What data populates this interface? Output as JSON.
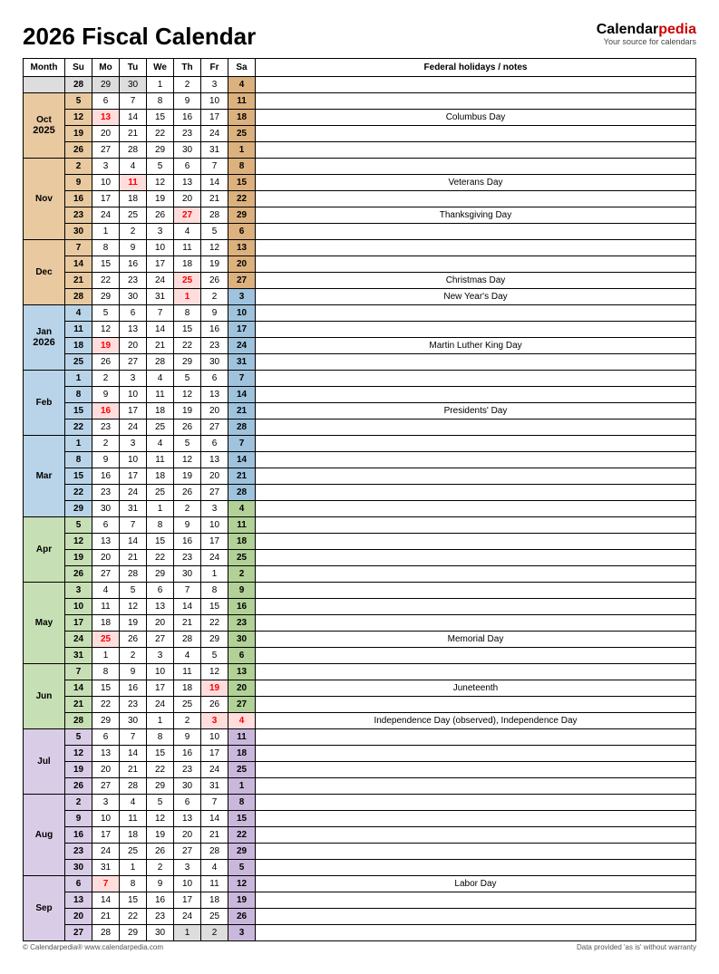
{
  "title": "2026 Fiscal Calendar",
  "brand": {
    "name_black": "Calendar",
    "name_red": "pedia",
    "tag": "Your source for calendars"
  },
  "headers": {
    "month": "Month",
    "days": [
      "Su",
      "Mo",
      "Tu",
      "We",
      "Th",
      "Fr",
      "Sa"
    ],
    "notes": "Federal holidays / notes"
  },
  "footer": {
    "left": "© Calendarpedia®   www.calendarpedia.com",
    "right": "Data provided 'as is' without warranty"
  },
  "colors": {
    "q1_su": "#e8c9a0",
    "q1_sa": "#dcb17e",
    "q1_m": "#e8c9a0",
    "q2_su": "#b9d4e8",
    "q2_sa": "#9fc2dd",
    "q2_m": "#b9d4e8",
    "q3_su": "#c7dfb4",
    "q3_sa": "#b1d197",
    "q3_m": "#c7dfb4",
    "q4_su": "#d9cce6",
    "q4_sa": "#c9b8dc",
    "q4_m": "#d9cce6",
    "prev": "#dddddd"
  },
  "months": [
    {
      "label": "Oct",
      "year": "2025",
      "q": 1,
      "pre": {
        "days": [
          "28",
          "29",
          "30",
          "1",
          "2",
          "3",
          "4"
        ],
        "prev": [
          0,
          1,
          2
        ],
        "sa_q": 1
      },
      "weeks": [
        {
          "days": [
            "5",
            "6",
            "7",
            "8",
            "9",
            "10",
            "11"
          ],
          "note": ""
        },
        {
          "days": [
            "12",
            "13",
            "14",
            "15",
            "16",
            "17",
            "18"
          ],
          "note": "Columbus Day",
          "holidays": [
            1
          ]
        },
        {
          "days": [
            "19",
            "20",
            "21",
            "22",
            "23",
            "24",
            "25"
          ],
          "note": ""
        },
        {
          "days": [
            "26",
            "27",
            "28",
            "29",
            "30",
            "31",
            "1"
          ],
          "note": "",
          "next_sa": true
        }
      ]
    },
    {
      "label": "Nov",
      "q": 1,
      "weeks": [
        {
          "days": [
            "2",
            "3",
            "4",
            "5",
            "6",
            "7",
            "8"
          ],
          "note": ""
        },
        {
          "days": [
            "9",
            "10",
            "11",
            "12",
            "13",
            "14",
            "15"
          ],
          "note": "Veterans Day",
          "holidays": [
            2
          ]
        },
        {
          "days": [
            "16",
            "17",
            "18",
            "19",
            "20",
            "21",
            "22"
          ],
          "note": ""
        },
        {
          "days": [
            "23",
            "24",
            "25",
            "26",
            "27",
            "28",
            "29"
          ],
          "note": "Thanksgiving Day",
          "holidays": [
            4
          ]
        },
        {
          "days": [
            "30",
            "1",
            "2",
            "3",
            "4",
            "5",
            "6"
          ],
          "note": "",
          "next_from": 1
        }
      ]
    },
    {
      "label": "Dec",
      "q": 1,
      "weeks": [
        {
          "days": [
            "7",
            "8",
            "9",
            "10",
            "11",
            "12",
            "13"
          ],
          "note": ""
        },
        {
          "days": [
            "14",
            "15",
            "16",
            "17",
            "18",
            "19",
            "20"
          ],
          "note": ""
        },
        {
          "days": [
            "21",
            "22",
            "23",
            "24",
            "25",
            "26",
            "27"
          ],
          "note": "Christmas Day",
          "holidays": [
            4
          ]
        },
        {
          "days": [
            "28",
            "29",
            "30",
            "31",
            "1",
            "2",
            "3"
          ],
          "note": "New Year's Day",
          "holidays": [
            4
          ],
          "next_from": 4,
          "sa_q": 2
        }
      ]
    },
    {
      "label": "Jan",
      "year": "2026",
      "q": 2,
      "weeks": [
        {
          "days": [
            "4",
            "5",
            "6",
            "7",
            "8",
            "9",
            "10"
          ],
          "note": ""
        },
        {
          "days": [
            "11",
            "12",
            "13",
            "14",
            "15",
            "16",
            "17"
          ],
          "note": ""
        },
        {
          "days": [
            "18",
            "19",
            "20",
            "21",
            "22",
            "23",
            "24"
          ],
          "note": "Martin Luther King Day",
          "holidays": [
            1
          ]
        },
        {
          "days": [
            "25",
            "26",
            "27",
            "28",
            "29",
            "30",
            "31"
          ],
          "note": ""
        }
      ]
    },
    {
      "label": "Feb",
      "q": 2,
      "weeks": [
        {
          "days": [
            "1",
            "2",
            "3",
            "4",
            "5",
            "6",
            "7"
          ],
          "note": ""
        },
        {
          "days": [
            "8",
            "9",
            "10",
            "11",
            "12",
            "13",
            "14"
          ],
          "note": ""
        },
        {
          "days": [
            "15",
            "16",
            "17",
            "18",
            "19",
            "20",
            "21"
          ],
          "note": "Presidents' Day",
          "holidays": [
            1
          ]
        },
        {
          "days": [
            "22",
            "23",
            "24",
            "25",
            "26",
            "27",
            "28"
          ],
          "note": ""
        }
      ]
    },
    {
      "label": "Mar",
      "q": 2,
      "weeks": [
        {
          "days": [
            "1",
            "2",
            "3",
            "4",
            "5",
            "6",
            "7"
          ],
          "note": ""
        },
        {
          "days": [
            "8",
            "9",
            "10",
            "11",
            "12",
            "13",
            "14"
          ],
          "note": ""
        },
        {
          "days": [
            "15",
            "16",
            "17",
            "18",
            "19",
            "20",
            "21"
          ],
          "note": ""
        },
        {
          "days": [
            "22",
            "23",
            "24",
            "25",
            "26",
            "27",
            "28"
          ],
          "note": ""
        },
        {
          "days": [
            "29",
            "30",
            "31",
            "1",
            "2",
            "3",
            "4"
          ],
          "note": "",
          "next_from": 3,
          "sa_q": 3
        }
      ]
    },
    {
      "label": "Apr",
      "q": 3,
      "weeks": [
        {
          "days": [
            "5",
            "6",
            "7",
            "8",
            "9",
            "10",
            "11"
          ],
          "note": ""
        },
        {
          "days": [
            "12",
            "13",
            "14",
            "15",
            "16",
            "17",
            "18"
          ],
          "note": ""
        },
        {
          "days": [
            "19",
            "20",
            "21",
            "22",
            "23",
            "24",
            "25"
          ],
          "note": ""
        },
        {
          "days": [
            "26",
            "27",
            "28",
            "29",
            "30",
            "1",
            "2"
          ],
          "note": "",
          "next_from": 5
        }
      ]
    },
    {
      "label": "May",
      "q": 3,
      "weeks": [
        {
          "days": [
            "3",
            "4",
            "5",
            "6",
            "7",
            "8",
            "9"
          ],
          "note": ""
        },
        {
          "days": [
            "10",
            "11",
            "12",
            "13",
            "14",
            "15",
            "16"
          ],
          "note": ""
        },
        {
          "days": [
            "17",
            "18",
            "19",
            "20",
            "21",
            "22",
            "23"
          ],
          "note": ""
        },
        {
          "days": [
            "24",
            "25",
            "26",
            "27",
            "28",
            "29",
            "30"
          ],
          "note": "Memorial Day",
          "holidays": [
            1
          ]
        },
        {
          "days": [
            "31",
            "1",
            "2",
            "3",
            "4",
            "5",
            "6"
          ],
          "note": "",
          "next_from": 1
        }
      ]
    },
    {
      "label": "Jun",
      "q": 3,
      "weeks": [
        {
          "days": [
            "7",
            "8",
            "9",
            "10",
            "11",
            "12",
            "13"
          ],
          "note": ""
        },
        {
          "days": [
            "14",
            "15",
            "16",
            "17",
            "18",
            "19",
            "20"
          ],
          "note": "Juneteenth",
          "holidays": [
            5
          ]
        },
        {
          "days": [
            "21",
            "22",
            "23",
            "24",
            "25",
            "26",
            "27"
          ],
          "note": ""
        },
        {
          "days": [
            "28",
            "29",
            "30",
            "1",
            "2",
            "3",
            "4"
          ],
          "note": "Independence Day (observed), Independence Day",
          "holidays": [
            5,
            6
          ],
          "next_from": 3,
          "sa_q": 4
        }
      ]
    },
    {
      "label": "Jul",
      "q": 4,
      "weeks": [
        {
          "days": [
            "5",
            "6",
            "7",
            "8",
            "9",
            "10",
            "11"
          ],
          "note": ""
        },
        {
          "days": [
            "12",
            "13",
            "14",
            "15",
            "16",
            "17",
            "18"
          ],
          "note": ""
        },
        {
          "days": [
            "19",
            "20",
            "21",
            "22",
            "23",
            "24",
            "25"
          ],
          "note": ""
        },
        {
          "days": [
            "26",
            "27",
            "28",
            "29",
            "30",
            "31",
            "1"
          ],
          "note": "",
          "next_from": 6
        }
      ]
    },
    {
      "label": "Aug",
      "q": 4,
      "weeks": [
        {
          "days": [
            "2",
            "3",
            "4",
            "5",
            "6",
            "7",
            "8"
          ],
          "note": ""
        },
        {
          "days": [
            "9",
            "10",
            "11",
            "12",
            "13",
            "14",
            "15"
          ],
          "note": ""
        },
        {
          "days": [
            "16",
            "17",
            "18",
            "19",
            "20",
            "21",
            "22"
          ],
          "note": ""
        },
        {
          "days": [
            "23",
            "24",
            "25",
            "26",
            "27",
            "28",
            "29"
          ],
          "note": ""
        },
        {
          "days": [
            "30",
            "31",
            "1",
            "2",
            "3",
            "4",
            "5"
          ],
          "note": "",
          "next_from": 2
        }
      ]
    },
    {
      "label": "Sep",
      "q": 4,
      "weeks": [
        {
          "days": [
            "6",
            "7",
            "8",
            "9",
            "10",
            "11",
            "12"
          ],
          "note": "Labor Day",
          "holidays": [
            1
          ]
        },
        {
          "days": [
            "13",
            "14",
            "15",
            "16",
            "17",
            "18",
            "19"
          ],
          "note": ""
        },
        {
          "days": [
            "20",
            "21",
            "22",
            "23",
            "24",
            "25",
            "26"
          ],
          "note": ""
        },
        {
          "days": [
            "27",
            "28",
            "29",
            "30",
            "1",
            "2",
            "3"
          ],
          "note": "",
          "next_from": 4,
          "next_prev": true
        }
      ]
    }
  ]
}
